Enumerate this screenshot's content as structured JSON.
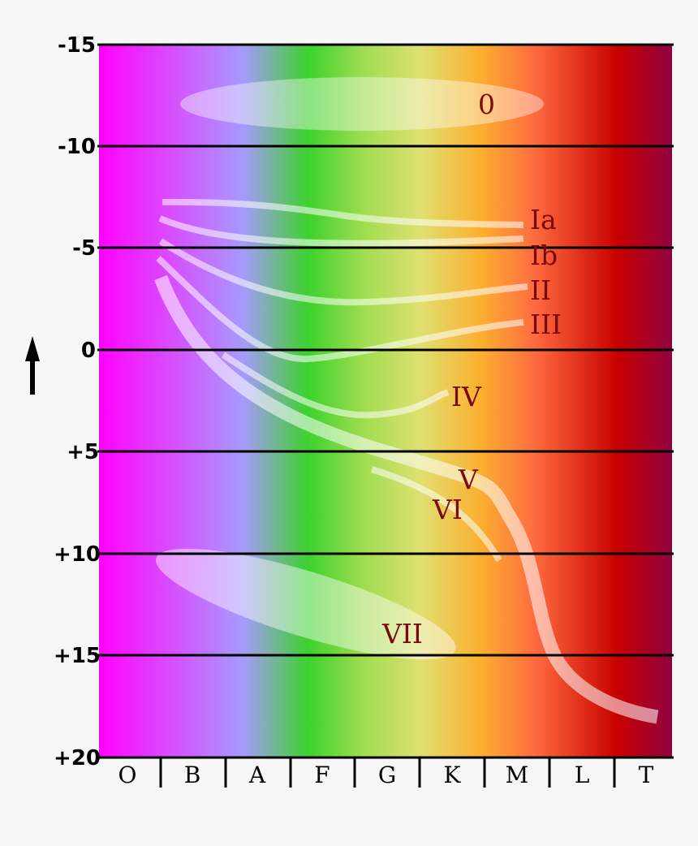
{
  "y_axis": {
    "ticks": [
      "-15",
      "-10",
      "-5",
      "0",
      "+5",
      "+10",
      "+15",
      "+20"
    ],
    "arrow_icon": "arrow-up-icon"
  },
  "x_axis": {
    "spectral_classes": [
      "O",
      "B",
      "A",
      "F",
      "G",
      "K",
      "M",
      "L",
      "T"
    ]
  },
  "luminosity_classes": {
    "zero": "0",
    "ia": "Ia",
    "ib": "Ib",
    "ii": "II",
    "iii": "III",
    "iv": "IV",
    "v": "V",
    "vi": "VI",
    "vii": "VII"
  },
  "colors": {
    "label": "#7a0a0a",
    "spectrum": [
      "#ff00ff",
      "#dd44ff",
      "#a899ff",
      "#3cd22c",
      "#9edd50",
      "#dfe070",
      "#fbb030",
      "#ff6b40",
      "#c80000",
      "#900040"
    ]
  }
}
